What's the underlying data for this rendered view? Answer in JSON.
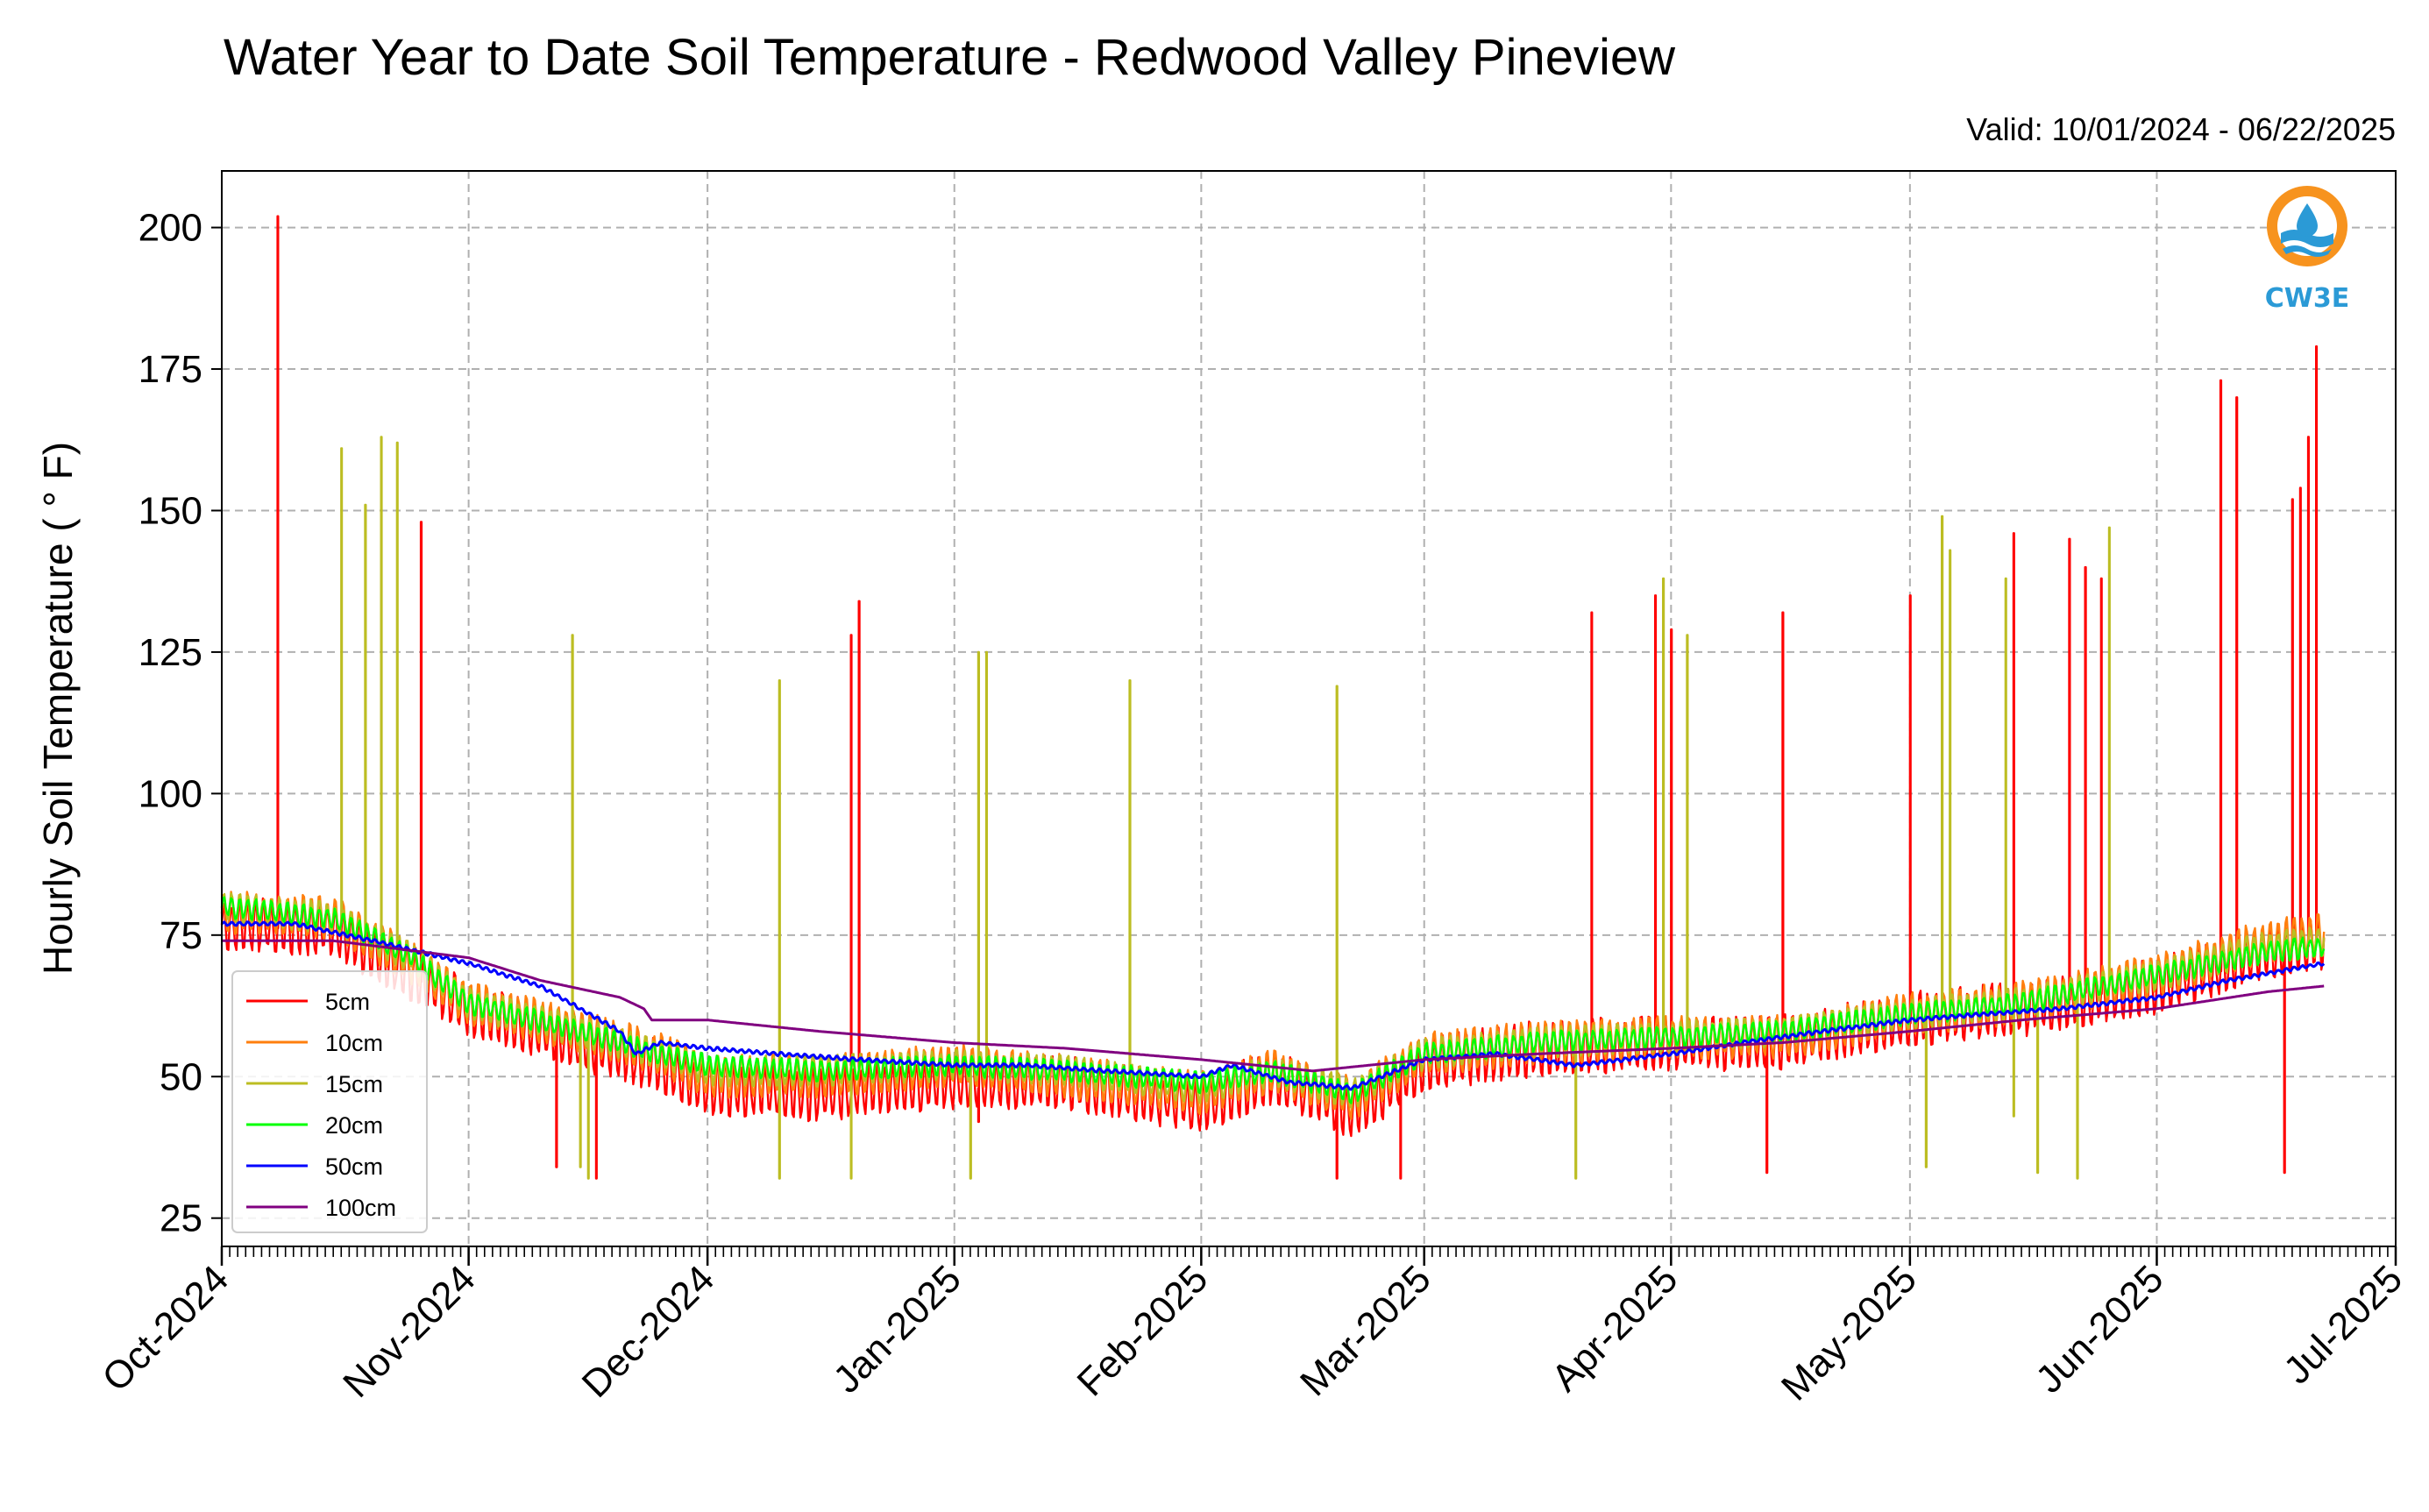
{
  "chart_data": {
    "type": "line",
    "title": "Water Year to Date Soil Temperature - Redwood Valley Pineview",
    "subtitle": "Valid: 10/01/2024 - 06/22/2025",
    "xlabel": "",
    "ylabel": "Hourly Soil Temperature ( ° F)",
    "x_start": "2024-10-01",
    "x_end": "2025-07-01",
    "ylim": [
      20,
      210
    ],
    "x_ticks": [
      "Oct-2024",
      "Nov-2024",
      "Dec-2024",
      "Jan-2025",
      "Feb-2025",
      "Mar-2025",
      "Apr-2025",
      "May-2025",
      "Jun-2025",
      "Jul-2025"
    ],
    "x_tick_dates": [
      "2024-10-01",
      "2024-11-01",
      "2024-12-01",
      "2025-01-01",
      "2025-02-01",
      "2025-03-01",
      "2025-04-01",
      "2025-05-01",
      "2025-06-01",
      "2025-07-01"
    ],
    "y_ticks": [
      25,
      50,
      75,
      100,
      125,
      150,
      175,
      200
    ],
    "grid": true,
    "legend_position": "lower-left",
    "series": [
      {
        "name": "5cm",
        "color": "#ff0000",
        "base": [
          [
            "2024-10-01",
            77
          ],
          [
            "2024-10-15",
            76
          ],
          [
            "2024-10-25",
            68
          ],
          [
            "2024-11-01",
            62
          ],
          [
            "2024-11-15",
            56
          ],
          [
            "2024-11-25",
            52
          ],
          [
            "2024-12-01",
            48
          ],
          [
            "2024-12-15",
            47
          ],
          [
            "2025-01-01",
            49
          ],
          [
            "2025-01-15",
            49
          ],
          [
            "2025-02-01",
            45
          ],
          [
            "2025-02-10",
            50
          ],
          [
            "2025-02-20",
            44
          ],
          [
            "2025-03-01",
            52
          ],
          [
            "2025-03-15",
            55
          ],
          [
            "2025-04-01",
            56
          ],
          [
            "2025-04-15",
            56
          ],
          [
            "2025-05-01",
            60
          ],
          [
            "2025-05-15",
            62
          ],
          [
            "2025-06-01",
            66
          ],
          [
            "2025-06-15",
            72
          ],
          [
            "2025-06-22",
            74
          ]
        ],
        "amp": 9,
        "spikes": [
          [
            "2024-10-08",
            202
          ],
          [
            "2024-10-26",
            148
          ],
          [
            "2024-12-19",
            128
          ],
          [
            "2024-12-20",
            134
          ],
          [
            "2025-01-04",
            42
          ],
          [
            "2025-03-22",
            132
          ],
          [
            "2025-03-30",
            135
          ],
          [
            "2025-04-01",
            129
          ],
          [
            "2025-04-15",
            132
          ],
          [
            "2025-05-01",
            135
          ],
          [
            "2025-05-14",
            146
          ],
          [
            "2025-05-21",
            145
          ],
          [
            "2025-05-23",
            140
          ],
          [
            "2025-05-25",
            138
          ],
          [
            "2025-06-09",
            173
          ],
          [
            "2025-06-11",
            170
          ],
          [
            "2025-06-18",
            152
          ],
          [
            "2025-06-19",
            154
          ],
          [
            "2025-06-20",
            163
          ],
          [
            "2025-06-21",
            179
          ],
          [
            "2024-11-12",
            34
          ],
          [
            "2024-11-17",
            32
          ],
          [
            "2025-02-18",
            32
          ],
          [
            "2025-02-26",
            32
          ],
          [
            "2025-04-13",
            33
          ],
          [
            "2025-06-17",
            33
          ]
        ]
      },
      {
        "name": "10cm",
        "color": "#ff7f0e",
        "base": [
          [
            "2024-10-01",
            79
          ],
          [
            "2024-10-15",
            78
          ],
          [
            "2024-10-25",
            70
          ],
          [
            "2024-11-01",
            63
          ],
          [
            "2024-11-15",
            58
          ],
          [
            "2024-11-25",
            54
          ],
          [
            "2024-12-01",
            50
          ],
          [
            "2024-12-15",
            50
          ],
          [
            "2025-01-01",
            52
          ],
          [
            "2025-01-15",
            50
          ],
          [
            "2025-02-01",
            47
          ],
          [
            "2025-02-10",
            51
          ],
          [
            "2025-02-20",
            46
          ],
          [
            "2025-03-01",
            54
          ],
          [
            "2025-03-15",
            56
          ],
          [
            "2025-04-01",
            57
          ],
          [
            "2025-04-15",
            57
          ],
          [
            "2025-05-01",
            61
          ],
          [
            "2025-05-15",
            63
          ],
          [
            "2025-06-01",
            68
          ],
          [
            "2025-06-15",
            74
          ],
          [
            "2025-06-22",
            75
          ]
        ],
        "amp": 7,
        "spikes": []
      },
      {
        "name": "15cm",
        "color": "#bcbd22",
        "base": [
          [
            "2024-10-01",
            80
          ],
          [
            "2024-10-15",
            78
          ],
          [
            "2024-10-25",
            71
          ],
          [
            "2024-11-01",
            63
          ],
          [
            "2024-11-15",
            58
          ],
          [
            "2024-11-25",
            54
          ],
          [
            "2024-12-01",
            51
          ],
          [
            "2024-12-15",
            51
          ],
          [
            "2025-01-01",
            52
          ],
          [
            "2025-01-15",
            51
          ],
          [
            "2025-02-01",
            48
          ],
          [
            "2025-02-10",
            51
          ],
          [
            "2025-02-20",
            47
          ],
          [
            "2025-03-01",
            54
          ],
          [
            "2025-03-15",
            56
          ],
          [
            "2025-04-01",
            57
          ],
          [
            "2025-04-15",
            58
          ],
          [
            "2025-05-01",
            61
          ],
          [
            "2025-05-15",
            63
          ],
          [
            "2025-06-01",
            68
          ],
          [
            "2025-06-15",
            73
          ],
          [
            "2025-06-22",
            74
          ]
        ],
        "amp": 5,
        "spikes": [
          [
            "2024-10-16",
            161
          ],
          [
            "2024-10-19",
            151
          ],
          [
            "2024-10-21",
            163
          ],
          [
            "2024-10-23",
            162
          ],
          [
            "2024-11-14",
            128
          ],
          [
            "2024-12-10",
            120
          ],
          [
            "2025-01-04",
            125
          ],
          [
            "2025-01-05",
            125
          ],
          [
            "2025-01-23",
            120
          ],
          [
            "2025-02-18",
            119
          ],
          [
            "2025-03-31",
            138
          ],
          [
            "2025-04-03",
            128
          ],
          [
            "2025-05-05",
            149
          ],
          [
            "2025-05-06",
            143
          ],
          [
            "2025-05-13",
            138
          ],
          [
            "2025-05-26",
            147
          ],
          [
            "2024-11-15",
            34
          ],
          [
            "2024-11-16",
            32
          ],
          [
            "2024-12-10",
            32
          ],
          [
            "2024-12-19",
            32
          ],
          [
            "2025-01-03",
            32
          ],
          [
            "2025-03-20",
            32
          ],
          [
            "2025-05-03",
            34
          ],
          [
            "2025-05-14",
            43
          ],
          [
            "2025-05-17",
            33
          ],
          [
            "2025-05-22",
            32
          ]
        ]
      },
      {
        "name": "20cm",
        "color": "#00ff00",
        "base": [
          [
            "2024-10-01",
            80
          ],
          [
            "2024-10-15",
            78
          ],
          [
            "2024-10-25",
            71
          ],
          [
            "2024-11-01",
            63
          ],
          [
            "2024-11-15",
            58
          ],
          [
            "2024-11-25",
            54
          ],
          [
            "2024-12-01",
            52
          ],
          [
            "2024-12-15",
            51
          ],
          [
            "2025-01-01",
            52
          ],
          [
            "2025-01-15",
            51
          ],
          [
            "2025-02-01",
            49
          ],
          [
            "2025-02-10",
            51
          ],
          [
            "2025-02-20",
            47
          ],
          [
            "2025-03-01",
            54
          ],
          [
            "2025-03-15",
            56
          ],
          [
            "2025-04-01",
            57
          ],
          [
            "2025-04-15",
            58
          ],
          [
            "2025-05-01",
            61
          ],
          [
            "2025-05-15",
            63
          ],
          [
            "2025-06-01",
            68
          ],
          [
            "2025-06-15",
            72
          ],
          [
            "2025-06-22",
            73
          ]
        ],
        "amp": 3.5,
        "spikes": []
      },
      {
        "name": "50cm",
        "color": "#0000ff",
        "base": [
          [
            "2024-10-01",
            77
          ],
          [
            "2024-10-10",
            77
          ],
          [
            "2024-10-20",
            74
          ],
          [
            "2024-11-01",
            70
          ],
          [
            "2024-11-10",
            66
          ],
          [
            "2024-11-20",
            58
          ],
          [
            "2024-11-22",
            54
          ],
          [
            "2024-11-25",
            56
          ],
          [
            "2024-12-01",
            55
          ],
          [
            "2024-12-10",
            54
          ],
          [
            "2024-12-20",
            53
          ],
          [
            "2025-01-01",
            52
          ],
          [
            "2025-01-10",
            52
          ],
          [
            "2025-01-20",
            51
          ],
          [
            "2025-02-01",
            50
          ],
          [
            "2025-02-05",
            52
          ],
          [
            "2025-02-12",
            49
          ],
          [
            "2025-02-20",
            48
          ],
          [
            "2025-03-01",
            53
          ],
          [
            "2025-03-10",
            54
          ],
          [
            "2025-03-20",
            52
          ],
          [
            "2025-04-01",
            54
          ],
          [
            "2025-04-10",
            56
          ],
          [
            "2025-04-20",
            58
          ],
          [
            "2025-05-01",
            60
          ],
          [
            "2025-05-10",
            61
          ],
          [
            "2025-05-20",
            62
          ],
          [
            "2025-06-01",
            64
          ],
          [
            "2025-06-10",
            67
          ],
          [
            "2025-06-18",
            69
          ],
          [
            "2025-06-22",
            70
          ]
        ],
        "amp": 0.6,
        "spikes": []
      },
      {
        "name": "100cm",
        "color": "#800080",
        "base": [
          [
            "2024-10-01",
            74
          ],
          [
            "2024-10-15",
            74
          ],
          [
            "2024-11-01",
            71
          ],
          [
            "2024-11-10",
            67
          ],
          [
            "2024-11-20",
            64
          ],
          [
            "2024-11-23",
            62
          ],
          [
            "2024-11-24",
            60
          ],
          [
            "2024-12-01",
            60
          ],
          [
            "2024-12-15",
            58
          ],
          [
            "2025-01-01",
            56
          ],
          [
            "2025-01-15",
            55
          ],
          [
            "2025-02-01",
            53
          ],
          [
            "2025-02-15",
            51
          ],
          [
            "2025-03-01",
            53
          ],
          [
            "2025-03-15",
            54
          ],
          [
            "2025-04-01",
            55
          ],
          [
            "2025-04-15",
            56
          ],
          [
            "2025-05-01",
            58
          ],
          [
            "2025-05-15",
            60
          ],
          [
            "2025-06-01",
            62
          ],
          [
            "2025-06-15",
            65
          ],
          [
            "2025-06-22",
            66
          ]
        ],
        "amp": 0,
        "spikes": []
      }
    ]
  },
  "logo": {
    "text": "CW3E",
    "color": "#2b9ad6",
    "accent": "#f7931e"
  }
}
